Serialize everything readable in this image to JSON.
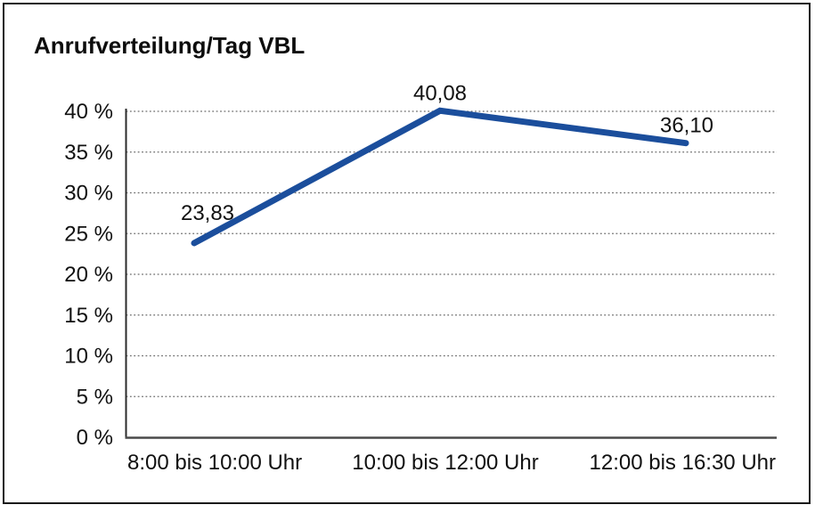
{
  "frame": {
    "background": "#ffffff",
    "border_color": "#1a1a1a"
  },
  "chart_data": {
    "type": "line",
    "title": "Anrufverteilung/Tag VBL",
    "categories": [
      "8:00 bis 10:00 Uhr",
      "10:00 bis 12:00 Uhr",
      "12:00 bis 16:30 Uhr"
    ],
    "values": [
      23.83,
      40.08,
      36.1
    ],
    "value_labels": [
      "23,83",
      "40,08",
      "36,10"
    ],
    "xlabel": "",
    "ylabel": "",
    "ylim": [
      0,
      40
    ],
    "ytick_step": 5,
    "ytick_labels": [
      "0 %",
      "5 %",
      "10 %",
      "15 %",
      "20 %",
      "25 %",
      "30 %",
      "35 %",
      "40 %"
    ],
    "grid": "horizontal-dotted",
    "legend": "none",
    "line_color": "#1B4E9C",
    "label_color": "#111111",
    "grid_color": "#6b6b6b",
    "axis_color": "#4a4a4a",
    "y_axis_color": "#2b2b2b"
  }
}
